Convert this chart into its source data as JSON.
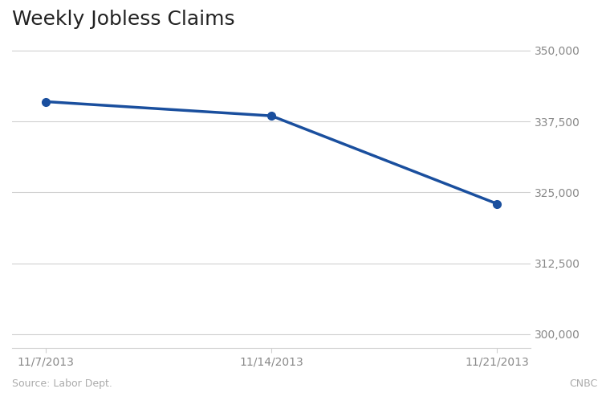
{
  "title": "Weekly Jobless Claims",
  "x_labels": [
    "11/7/2013",
    "11/14/2013",
    "11/21/2013"
  ],
  "x_values": [
    0,
    1,
    2
  ],
  "y_values": [
    341000,
    338500,
    323000
  ],
  "line_color": "#1a4f9e",
  "marker_color": "#1a4f9e",
  "ylim": [
    297500,
    352500
  ],
  "yticks": [
    300000,
    312500,
    325000,
    337500,
    350000
  ],
  "ytick_labels": [
    "300,000",
    "312,500",
    "325,000",
    "337,500",
    "350,000"
  ],
  "source_text": "Source: Labor Dept.",
  "credit_text": "CNBC",
  "bg_color": "#ffffff",
  "grid_color": "#d0d0d0",
  "title_fontsize": 18,
  "tick_fontsize": 10,
  "source_fontsize": 9,
  "line_width": 2.5,
  "marker_size": 7
}
